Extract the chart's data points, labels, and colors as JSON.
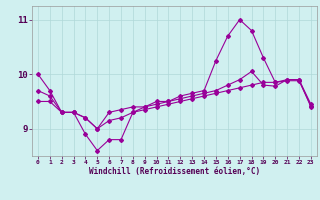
{
  "xlabel": "Windchill (Refroidissement éolien,°C)",
  "x": [
    0,
    1,
    2,
    3,
    4,
    5,
    6,
    7,
    8,
    9,
    10,
    11,
    12,
    13,
    14,
    15,
    16,
    17,
    18,
    19,
    20,
    21,
    22,
    23
  ],
  "line1": [
    10.0,
    9.7,
    9.3,
    9.3,
    8.9,
    8.6,
    8.8,
    8.8,
    9.3,
    9.4,
    9.5,
    9.5,
    9.6,
    9.65,
    9.7,
    10.25,
    10.7,
    11.0,
    10.8,
    10.3,
    9.85,
    9.9,
    9.9,
    9.4
  ],
  "line2": [
    9.7,
    9.6,
    9.3,
    9.3,
    9.2,
    9.0,
    9.3,
    9.35,
    9.4,
    9.4,
    9.45,
    9.5,
    9.55,
    9.6,
    9.65,
    9.7,
    9.8,
    9.9,
    10.05,
    9.8,
    9.78,
    9.9,
    9.9,
    9.45
  ],
  "line3": [
    9.5,
    9.5,
    9.3,
    9.3,
    9.2,
    9.0,
    9.15,
    9.2,
    9.3,
    9.35,
    9.4,
    9.45,
    9.5,
    9.55,
    9.6,
    9.65,
    9.7,
    9.75,
    9.8,
    9.85,
    9.85,
    9.88,
    9.88,
    9.42
  ],
  "line_color": "#990099",
  "bg_color": "#d0f0f0",
  "grid_color": "#b0d8d8",
  "ylim": [
    8.5,
    11.25
  ],
  "yticks": [
    9,
    10,
    11
  ],
  "xtick_labels": [
    "0",
    "1",
    "2",
    "3",
    "4",
    "5",
    "6",
    "7",
    "8",
    "9",
    "10",
    "11",
    "12",
    "13",
    "14",
    "15",
    "16",
    "17",
    "18",
    "19",
    "20",
    "21",
    "22",
    "23"
  ]
}
